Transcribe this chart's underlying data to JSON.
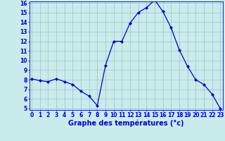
{
  "x": [
    0,
    1,
    2,
    3,
    4,
    5,
    6,
    7,
    8,
    9,
    10,
    11,
    12,
    13,
    14,
    15,
    16,
    17,
    18,
    19,
    20,
    21,
    22,
    23
  ],
  "y": [
    8.1,
    7.9,
    7.8,
    8.1,
    7.8,
    7.5,
    6.8,
    6.3,
    5.3,
    9.5,
    12.0,
    12.0,
    13.9,
    15.0,
    15.5,
    16.3,
    15.1,
    13.4,
    11.1,
    9.4,
    8.0,
    7.5,
    6.5,
    5.0
  ],
  "line_color": "#0000cc",
  "bg_color": "#c8ecec",
  "grid_color": "#9fbfbf",
  "xlabel": "Graphe des températures (°c)",
  "tick_color": "#0000cc",
  "ylim_min": 5,
  "ylim_max": 16,
  "xlim_min": 0,
  "xlim_max": 23,
  "yticks": [
    5,
    6,
    7,
    8,
    9,
    10,
    11,
    12,
    13,
    14,
    15,
    16
  ],
  "xticks": [
    0,
    1,
    2,
    3,
    4,
    5,
    6,
    7,
    8,
    9,
    10,
    11,
    12,
    13,
    14,
    15,
    16,
    17,
    18,
    19,
    20,
    21,
    22,
    23
  ],
  "figsize": [
    3.2,
    2.0
  ],
  "dpi": 100,
  "tick_fontsize": 5.5,
  "xlabel_fontsize": 7,
  "linewidth": 0.9,
  "markersize": 2.2
}
